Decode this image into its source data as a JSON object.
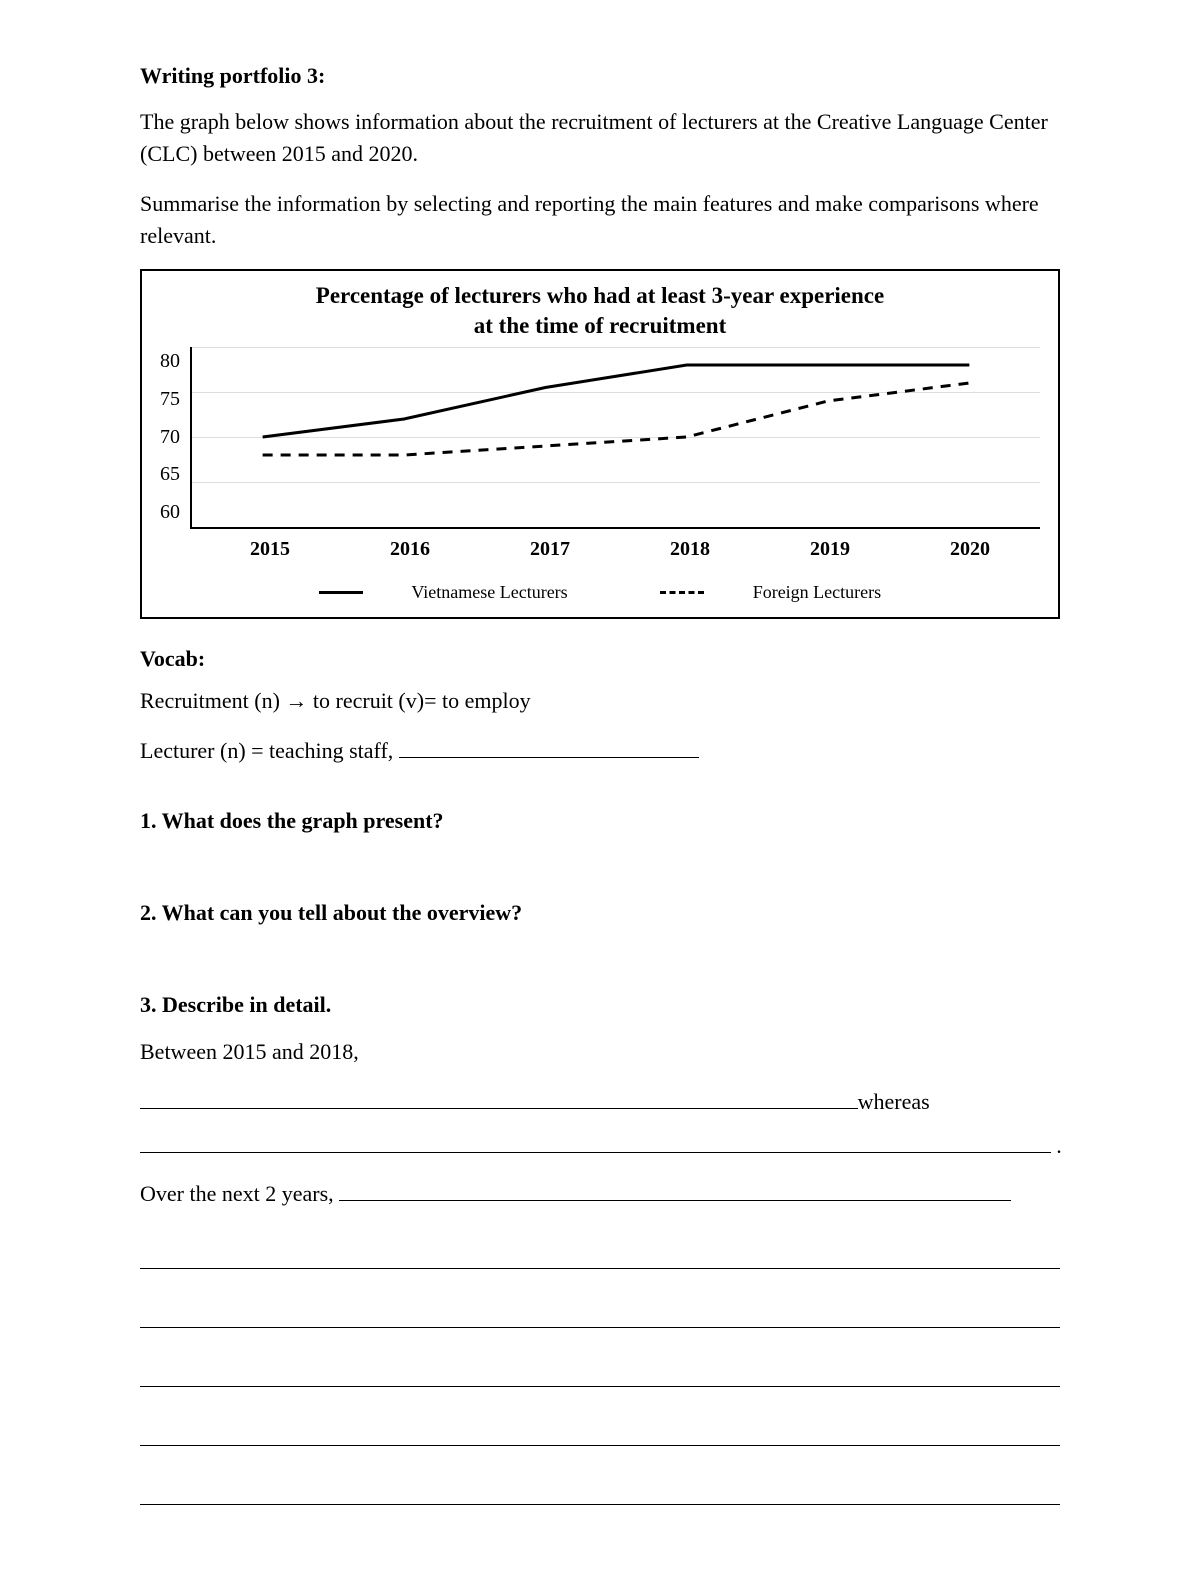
{
  "heading": "Writing portfolio 3:",
  "intro1": "The graph below shows information about the recruitment of lecturers at the Creative Language Center (CLC) between 2015 and 2020.",
  "intro2": "Summarise the information by selecting and reporting the main features and make comparisons where relevant.",
  "chart": {
    "type": "line",
    "title_line1": "Percentage of lecturers who had at least 3-year experience",
    "title_line2": "at the time of recruitment",
    "categories": [
      "2015",
      "2016",
      "2017",
      "2018",
      "2019",
      "2020"
    ],
    "yticks": [
      80,
      75,
      70,
      65,
      60
    ],
    "ylim_min": 60,
    "ylim_max": 80,
    "series": [
      {
        "name": "Vietnamese Lecturers",
        "values": [
          70,
          72,
          75.5,
          78,
          78,
          78
        ],
        "style": "solid",
        "width": 3,
        "color": "#000000"
      },
      {
        "name": "Foreign Lecturers",
        "values": [
          68,
          68,
          69,
          70,
          74,
          76
        ],
        "style": "dashed",
        "width": 3,
        "color": "#000000"
      }
    ],
    "background_color": "#ffffff"
  },
  "vocab": {
    "heading": "Vocab:",
    "line1": "Recruitment (n) → to recruit (v)= to employ",
    "line2_prefix": "Lecturer (n) = teaching staff, "
  },
  "questions": {
    "q1": "1. What does the graph present?",
    "q2": "2. What can you tell about the overview?",
    "q3": "3. Describe in detail."
  },
  "detail": {
    "lead1": "Between 2015 and 2018,",
    "tail1": "whereas",
    "lead2": "Over the next 2 years, "
  }
}
